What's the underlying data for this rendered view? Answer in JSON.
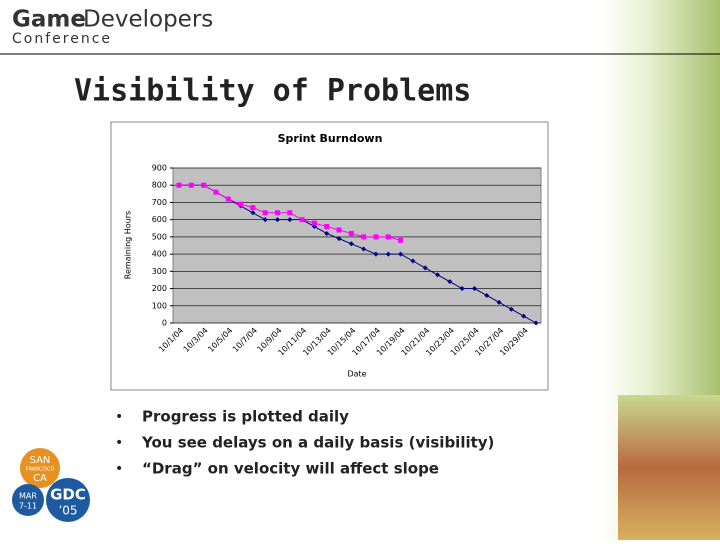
{
  "header": {
    "brand_bold": "Game",
    "brand_regular": "Developers",
    "brand_sub": "Conference"
  },
  "slide": {
    "title": "Visibility of Problems",
    "bullets": [
      "Progress is plotted daily",
      "You see delays on a daily basis (visibility)",
      "“Drag” on velocity will affect slope"
    ]
  },
  "logo": {
    "city": [
      "SAN",
      "FRANCISCO",
      "CA"
    ],
    "date": [
      "MAR",
      "7-11"
    ],
    "event": [
      "GDC",
      "’05"
    ]
  },
  "chart_data": {
    "type": "line",
    "title": "Sprint Burndown",
    "x_label": "Date",
    "y_label": "Remaining Hours",
    "categories": [
      "10/1/04",
      null,
      "10/3/04",
      null,
      "10/5/04",
      null,
      "10/7/04",
      null,
      "10/9/04",
      null,
      "10/11/04",
      null,
      "10/13/04",
      null,
      "10/15/04",
      null,
      "10/17/04",
      null,
      "10/19/04",
      null,
      "10/21/04",
      null,
      "10/23/04",
      null,
      "10/25/04",
      null,
      "10/27/04",
      null,
      "10/29/04",
      null
    ],
    "series": [
      {
        "color": "#000080",
        "marker": "diamond",
        "values": [
          800,
          800,
          800,
          760,
          720,
          680,
          640,
          600,
          600,
          600,
          600,
          560,
          520,
          490,
          460,
          430,
          400,
          400,
          400,
          360,
          320,
          280,
          240,
          200,
          200,
          160,
          120,
          80,
          40,
          0
        ]
      },
      {
        "color": "#ff00ff",
        "marker": "square",
        "values": [
          800,
          800,
          800,
          760,
          720,
          690,
          670,
          640,
          640,
          640,
          600,
          580,
          560,
          540,
          520,
          500,
          500,
          500,
          480,
          null,
          null,
          null,
          null,
          null,
          null,
          null,
          null,
          null,
          null,
          null
        ]
      }
    ],
    "ylim": [
      0,
      900
    ],
    "yticks": [
      0,
      100,
      200,
      300,
      400,
      500,
      600,
      700,
      800,
      900
    ],
    "grid": true,
    "plot_background": "#c0c0c0"
  }
}
